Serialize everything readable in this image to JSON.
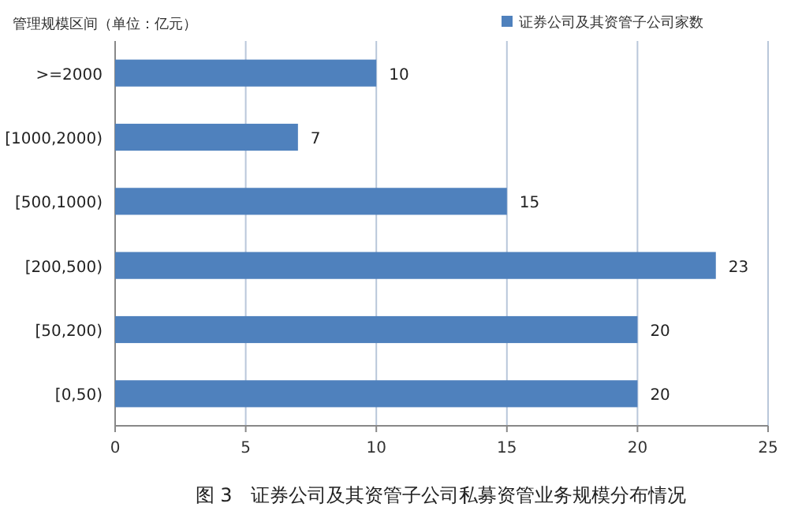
{
  "chart_data": {
    "type": "bar",
    "orientation": "horizontal",
    "title": "图 3　证券公司及其资管子公司私募资管业务规模分布情况",
    "ylabel": "管理规模区间（单位：亿元）",
    "categories": [
      ">=2000",
      "[1000,2000)",
      "[500,1000)",
      "[200,500)",
      "[50,200)",
      "[0,50)"
    ],
    "series": [
      {
        "name": "证券公司及其资管子公司家数",
        "color": "#4f81bd",
        "values": [
          10,
          7,
          15,
          23,
          20,
          20
        ]
      }
    ],
    "xlim": [
      0,
      25
    ],
    "xticks": [
      0,
      5,
      10,
      15,
      20,
      25
    ],
    "grid": "x",
    "legend": "top right",
    "data_labels": true
  }
}
